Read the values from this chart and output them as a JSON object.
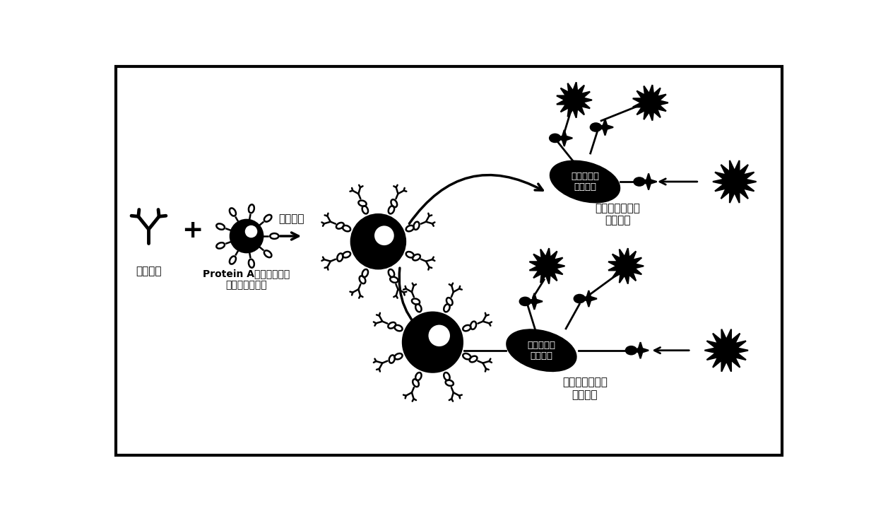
{
  "bg_color": "#ffffff",
  "border_color": "#000000",
  "text_color": "#000000",
  "label_antibody": "标准抗体",
  "label_protein_a": "Protein A包被的纳米微\n球（无生物素）",
  "label_chemical_coupling": "化学偶联",
  "label_fluorescent1": "荧光素预标记的\n抗原蛋白",
  "label_fluorescent2": "荧光素预标记的\n抗原蛋白",
  "label_biotin_antigen1": "生物素偶联\n抗原蛋白",
  "label_biotin_antigen2": "生物素偶联\n抗原蛋白"
}
